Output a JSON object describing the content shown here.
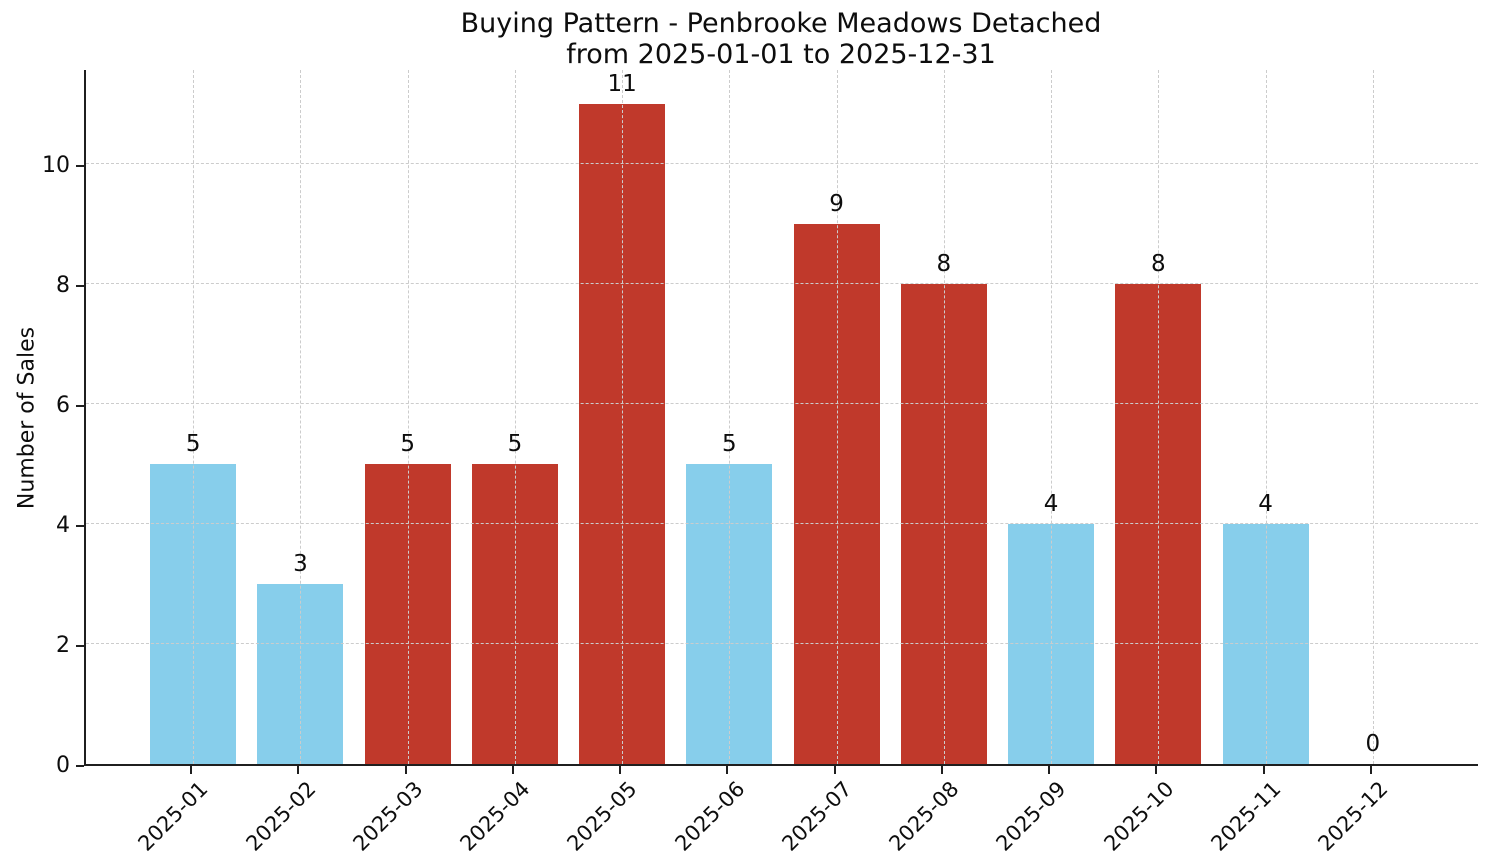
{
  "title": {
    "line1": "Buying Pattern - Penbrooke Meadows Detached",
    "line2": "from 2025-01-01 to 2025-12-31"
  },
  "y_axis": {
    "label": "Number of Sales",
    "ticks": [
      0,
      2,
      4,
      6,
      8,
      10
    ]
  },
  "chart_data": {
    "type": "bar",
    "title": "Buying Pattern - Penbrooke Meadows Detached from 2025-01-01 to 2025-12-31",
    "xlabel": "",
    "ylabel": "Number of Sales",
    "categories": [
      "2025-01",
      "2025-02",
      "2025-03",
      "2025-04",
      "2025-05",
      "2025-06",
      "2025-07",
      "2025-08",
      "2025-09",
      "2025-10",
      "2025-11",
      "2025-12"
    ],
    "values": [
      5,
      3,
      5,
      5,
      11,
      5,
      9,
      8,
      4,
      8,
      4,
      0
    ],
    "value_labels": [
      "5",
      "3",
      "5",
      "5",
      "11",
      "5",
      "9",
      "8",
      "4",
      "8",
      "4",
      "0"
    ],
    "bar_colors": [
      "#87CEEB",
      "#87CEEB",
      "#C0392B",
      "#C0392B",
      "#C0392B",
      "#87CEEB",
      "#C0392B",
      "#C0392B",
      "#87CEEB",
      "#C0392B",
      "#87CEEB",
      "#87CEEB"
    ],
    "yticks": [
      0,
      2,
      4,
      6,
      8,
      10
    ],
    "ylim": [
      0,
      11.6
    ],
    "grid": {
      "visible": true,
      "style": "dashed",
      "color": "#cccccc",
      "axes": "both",
      "above_bars": true
    },
    "legend": "none"
  },
  "colors": {
    "bar_blue": "#87CEEB",
    "bar_red": "#C0392B",
    "grid": "#cccccc",
    "axis": "#1f1f1f",
    "text": "#0d0d0d",
    "background": "#ffffff"
  }
}
